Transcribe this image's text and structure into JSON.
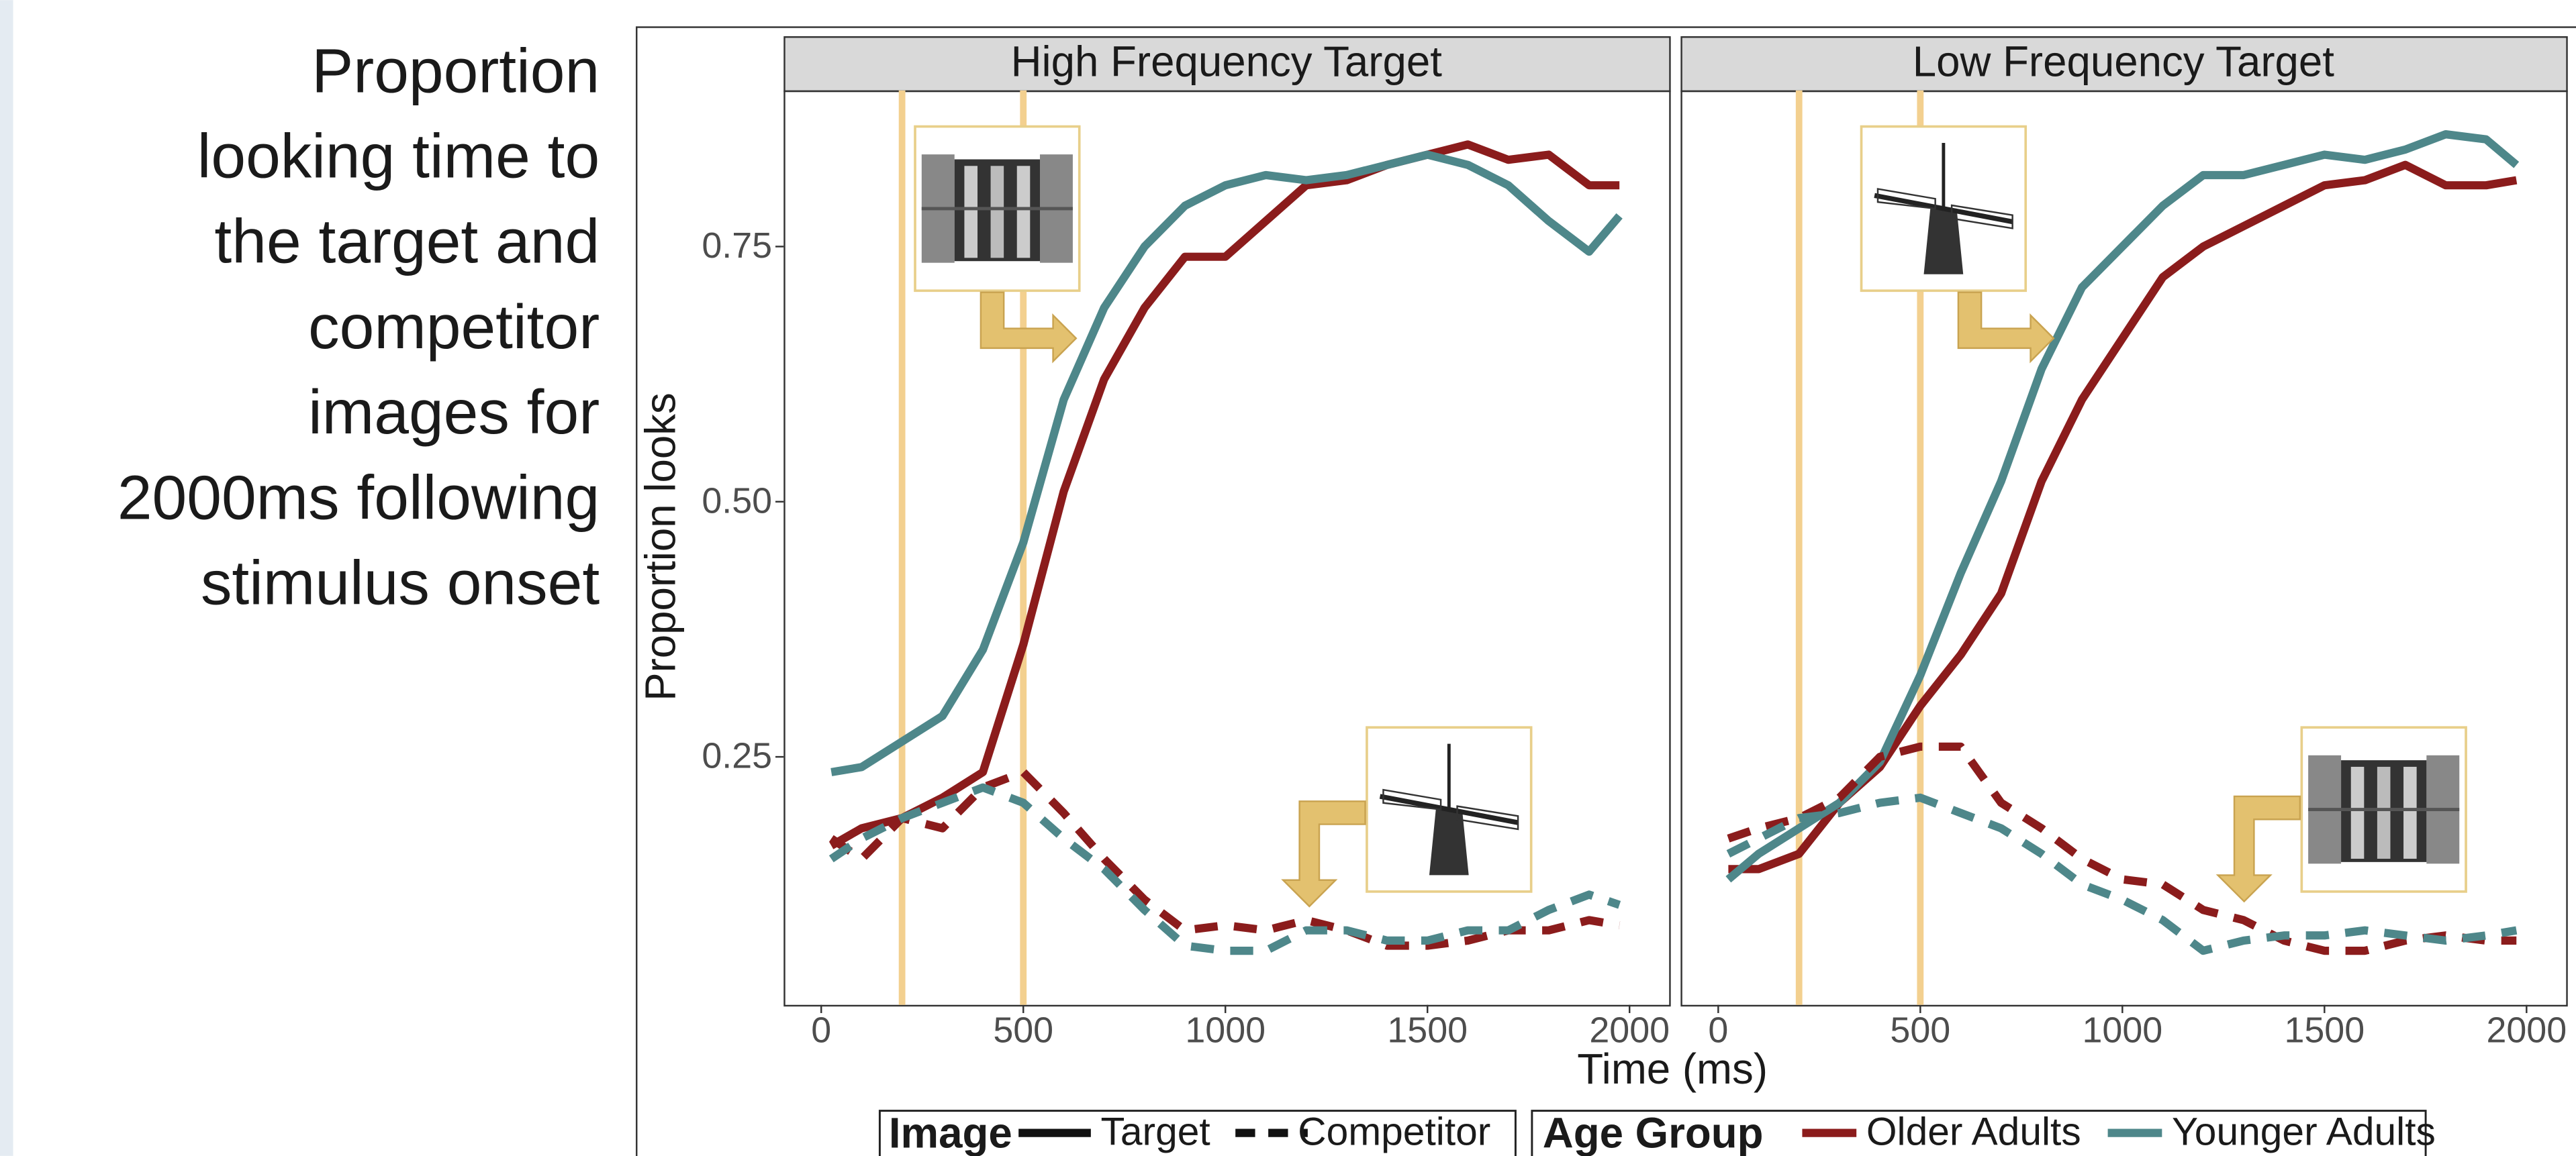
{
  "caption": [
    "Proportion",
    "looking time to",
    "the target and",
    "competitor",
    "images for",
    "2000ms following",
    "stimulus onset"
  ],
  "axes": {
    "xlabel": "Time (ms)",
    "ylabel": "Proportion looks"
  },
  "legend": {
    "image": {
      "title": "Image",
      "items": [
        {
          "label": "Target",
          "dashed": false
        },
        {
          "label": "Competitor",
          "dashed": true
        }
      ]
    },
    "age_group": {
      "title": "Age Group",
      "items": [
        {
          "label": "Older Adults",
          "color": "#8b1c1c"
        },
        {
          "label": "Younger Adults",
          "color": "#4e878a"
        }
      ]
    }
  },
  "chart_data": [
    {
      "type": "line",
      "title": "High Frequency Target",
      "xlim": [
        -93,
        2098
      ],
      "ylim": [
        0.007,
        0.903
      ],
      "xticks": [
        0,
        500,
        1000,
        1500,
        2000
      ],
      "yticks": [
        0.25,
        {
          "value": 0.5,
          "label": "0.50"
        },
        0.75
      ],
      "vlines": [
        200,
        500
      ],
      "vline_color": "#f3d08f",
      "x": [
        25,
        100,
        200,
        300,
        400,
        500,
        600,
        700,
        800,
        900,
        1000,
        1100,
        1200,
        1300,
        1400,
        1500,
        1600,
        1700,
        1800,
        1900,
        1975
      ],
      "series": [
        {
          "color": "#8b1c1c",
          "dashed": false,
          "values": [
            0.163,
            0.18,
            0.19,
            0.21,
            0.235,
            0.36,
            0.51,
            0.62,
            0.69,
            0.74,
            0.74,
            0.775,
            0.81,
            0.815,
            0.83,
            0.84,
            0.85,
            0.835,
            0.84,
            0.81,
            0.81
          ]
        },
        {
          "color": "#4e878a",
          "dashed": false,
          "values": [
            0.235,
            0.24,
            0.265,
            0.29,
            0.355,
            0.46,
            0.6,
            0.69,
            0.75,
            0.79,
            0.81,
            0.82,
            0.815,
            0.82,
            0.83,
            0.84,
            0.83,
            0.81,
            0.775,
            0.745,
            0.78
          ]
        },
        {
          "color": "#8b1c1c",
          "dashed": true,
          "values": [
            0.17,
            0.15,
            0.19,
            0.18,
            0.22,
            0.235,
            0.195,
            0.15,
            0.11,
            0.08,
            0.085,
            0.08,
            0.09,
            0.08,
            0.065,
            0.065,
            0.07,
            0.08,
            0.08,
            0.09,
            0.085
          ]
        },
        {
          "color": "#4e878a",
          "dashed": true,
          "values": [
            0.15,
            0.17,
            0.19,
            0.205,
            0.22,
            0.205,
            0.17,
            0.14,
            0.1,
            0.065,
            0.06,
            0.06,
            0.08,
            0.08,
            0.07,
            0.07,
            0.08,
            0.08,
            0.1,
            0.115,
            0.105
          ]
        }
      ]
    },
    {
      "type": "line",
      "title": "Low Frequency Target",
      "xlim": [
        -93,
        2098
      ],
      "ylim": [
        0.007,
        0.903
      ],
      "xticks": [
        0,
        500,
        1000,
        1500,
        2000
      ],
      "vlines": [
        200,
        500
      ],
      "vline_color": "#f3d08f",
      "x": [
        25,
        100,
        200,
        300,
        400,
        500,
        600,
        700,
        800,
        900,
        1000,
        1100,
        1200,
        1300,
        1400,
        1500,
        1600,
        1700,
        1800,
        1900,
        1975
      ],
      "series": [
        {
          "color": "#8b1c1c",
          "dashed": false,
          "values": [
            0.14,
            0.14,
            0.155,
            0.205,
            0.24,
            0.3,
            0.35,
            0.41,
            0.52,
            0.6,
            0.66,
            0.72,
            0.75,
            0.77,
            0.79,
            0.81,
            0.815,
            0.83,
            0.81,
            0.81,
            0.815
          ]
        },
        {
          "color": "#4e878a",
          "dashed": false,
          "values": [
            0.13,
            0.155,
            0.18,
            0.205,
            0.245,
            0.33,
            0.43,
            0.52,
            0.63,
            0.71,
            0.75,
            0.79,
            0.82,
            0.82,
            0.83,
            0.84,
            0.835,
            0.845,
            0.86,
            0.855,
            0.83
          ]
        },
        {
          "color": "#8b1c1c",
          "dashed": true,
          "values": [
            0.17,
            0.18,
            0.19,
            0.21,
            0.25,
            0.26,
            0.26,
            0.205,
            0.18,
            0.15,
            0.13,
            0.125,
            0.1,
            0.09,
            0.07,
            0.06,
            0.06,
            0.07,
            0.075,
            0.07,
            0.07
          ]
        },
        {
          "color": "#4e878a",
          "dashed": true,
          "values": [
            0.155,
            0.17,
            0.19,
            0.195,
            0.205,
            0.21,
            0.195,
            0.18,
            0.155,
            0.125,
            0.11,
            0.09,
            0.06,
            0.07,
            0.075,
            0.075,
            0.08,
            0.075,
            0.07,
            0.075,
            0.08
          ]
        }
      ]
    }
  ]
}
